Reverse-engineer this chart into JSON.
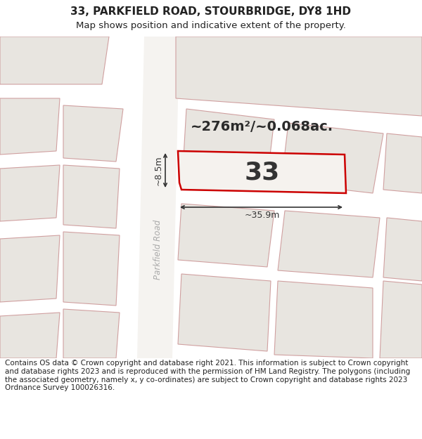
{
  "title_line1": "33, PARKFIELD ROAD, STOURBRIDGE, DY8 1HD",
  "title_line2": "Map shows position and indicative extent of the property.",
  "footer_text": "Contains OS data © Crown copyright and database right 2021. This information is subject to Crown copyright and database rights 2023 and is reproduced with the permission of HM Land Registry. The polygons (including the associated geometry, namely x, y co-ordinates) are subject to Crown copyright and database rights 2023 Ordnance Survey 100026316.",
  "area_text": "~276m²/~0.068ac.",
  "property_number": "33",
  "dim_width": "~35.9m",
  "dim_height": "~8.5m",
  "map_bg": "#f2f0ed",
  "building_fill": "#e8e5e0",
  "building_edge": "#d0a0a0",
  "plot_color": "#cc0000",
  "road_fill": "#f5f3f0",
  "road_label_color": "#aaaaaa",
  "title_fontsize": 11,
  "subtitle_fontsize": 9.5,
  "footer_fontsize": 7.5,
  "dim_fontsize": 9,
  "area_fontsize": 14,
  "num_fontsize": 26
}
